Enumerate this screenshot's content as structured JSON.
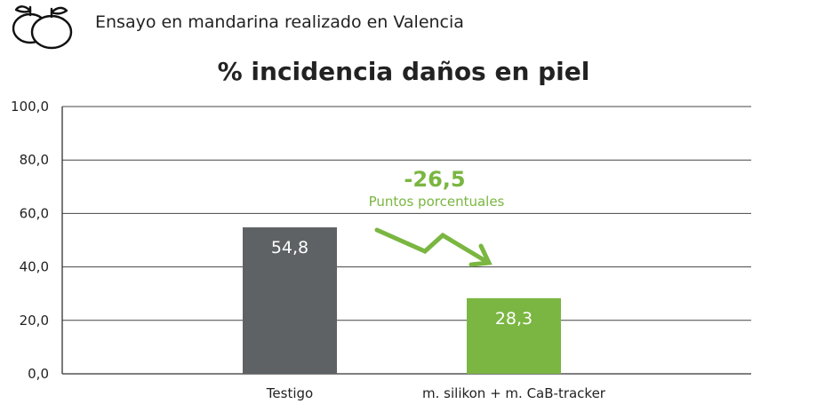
{
  "header": {
    "icon": "mandarin-icon",
    "text": "Ensayo en mandarina realizado en Valencia"
  },
  "chart_data": {
    "type": "bar",
    "title": "% incidencia daños en piel",
    "categories": [
      "Testigo",
      "m. silikon + m. CaB-tracker"
    ],
    "values": [
      54.8,
      28.3
    ],
    "value_labels": [
      "54,8",
      "28,3"
    ],
    "colors": [
      "#5f6265",
      "#7ab641"
    ],
    "ylim": [
      0,
      100
    ],
    "yticks": [
      0,
      20,
      40,
      60,
      80,
      100
    ],
    "ytick_labels": [
      "0,0",
      "20,0",
      "40,0",
      "60,0",
      "80,0",
      "100,0"
    ],
    "grid": true,
    "xlabel": "",
    "ylabel": "",
    "annotation": {
      "value": "-26,5",
      "text": "Puntos porcentuales",
      "color": "#7ab641",
      "arrow": "zigzag-down-arrow-icon"
    }
  }
}
